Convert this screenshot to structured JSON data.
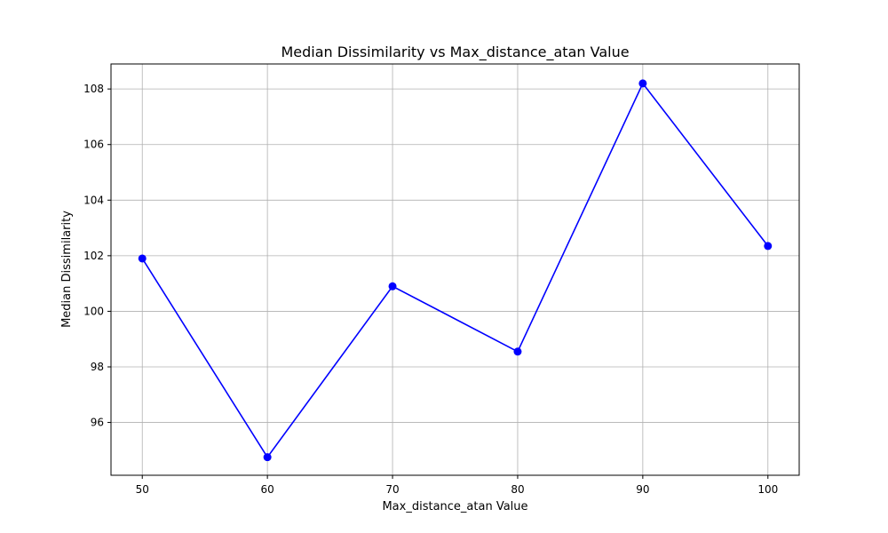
{
  "chart_data": {
    "type": "line",
    "title": "Median Dissimilarity vs Max_distance_atan Value",
    "xlabel": "Max_distance_atan Value",
    "ylabel": "Median Dissimilarity",
    "x": [
      50,
      60,
      70,
      80,
      90,
      100
    ],
    "xticks": [
      50,
      60,
      70,
      80,
      90,
      100
    ],
    "yticks": [
      96,
      98,
      100,
      102,
      104,
      106,
      108
    ],
    "xlim": [
      47.5,
      102.5
    ],
    "ylim": [
      94.1,
      108.9
    ],
    "grid": true,
    "series": [
      {
        "values": [
          101.9,
          94.75,
          100.9,
          98.55,
          108.2,
          102.35
        ],
        "color": "#0000ff",
        "marker": "circle"
      }
    ]
  }
}
